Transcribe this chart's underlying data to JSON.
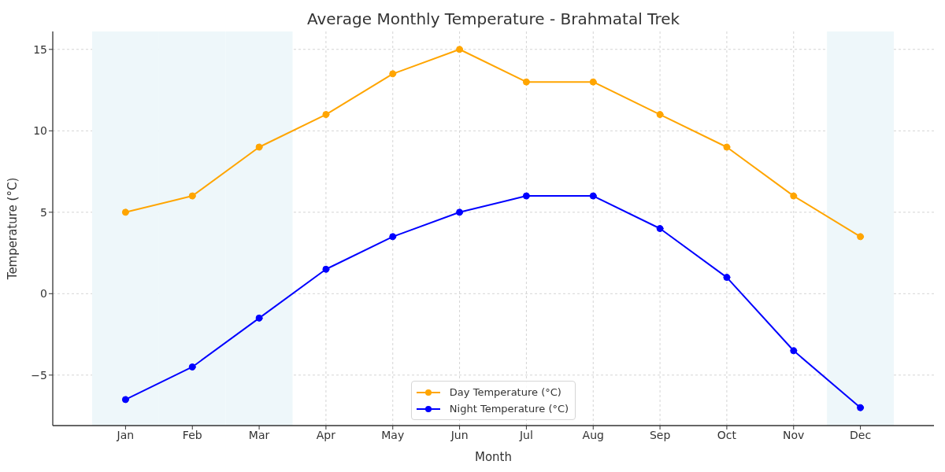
{
  "chart_data": {
    "type": "line",
    "title": "Average Monthly Temperature - Brahmatal Trek",
    "xlabel": "Month",
    "ylabel": "Temperature (°C)",
    "categories": [
      "Jan",
      "Feb",
      "Mar",
      "Apr",
      "May",
      "Jun",
      "Jul",
      "Aug",
      "Sep",
      "Oct",
      "Nov",
      "Dec"
    ],
    "series": [
      {
        "name": "Day Temperature (°C)",
        "color": "#ffa500",
        "values": [
          5,
          6,
          9,
          11,
          13.5,
          15,
          13,
          13,
          11,
          9,
          6,
          3.5
        ]
      },
      {
        "name": "Night Temperature (°C)",
        "color": "#0000ff",
        "values": [
          -6.5,
          -4.5,
          -1.5,
          1.5,
          3.5,
          5,
          6,
          6,
          4,
          1,
          -3.5,
          -7
        ]
      }
    ],
    "ylim": [
      -8.1,
      16.1
    ],
    "yticks": [
      {
        "value": -5,
        "label": "−5"
      },
      0,
      5,
      10,
      15
    ],
    "bands": [
      {
        "axis": "x",
        "from": "Jan",
        "to": "Jan",
        "color": "#eef7fa"
      },
      {
        "axis": "x",
        "from": "Feb",
        "to": "Feb",
        "color": "#eef7fa"
      },
      {
        "axis": "x",
        "from": "Mar",
        "to": "Mar",
        "color": "#eef7fa"
      },
      {
        "axis": "x",
        "from": "Dec",
        "to": "Dec",
        "color": "#eef7fa"
      }
    ],
    "grid": true,
    "legend": "bottom",
    "marker": "circle",
    "line_style": "solid"
  }
}
